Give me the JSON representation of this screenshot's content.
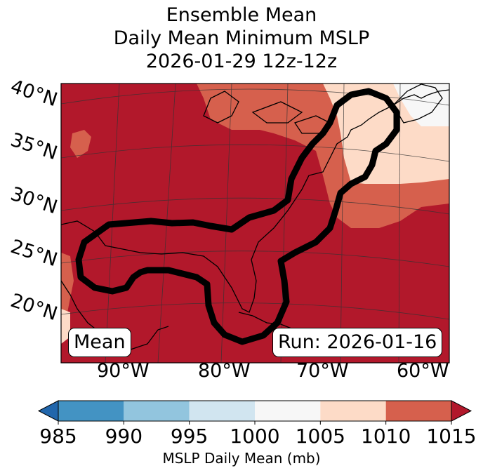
{
  "title": {
    "line1": "Ensemble Mean",
    "line2": "Daily Mean Minimum MSLP",
    "line3": "2026-01-29 12z-12z"
  },
  "map": {
    "lat_labels": [
      "40°N",
      "35°N",
      "30°N",
      "25°N",
      "20°N"
    ],
    "lon_labels": [
      "90°W",
      "80°W",
      "70°W",
      "60°W"
    ],
    "left_box": "Mean",
    "right_box": "Run: 2026-01-16",
    "contour_description_value": "1010 mb contour region",
    "colors": {
      "c985": "#2166ac",
      "c990": "#4393c3",
      "c995": "#92c5de",
      "c1000": "#d1e5f0",
      "c1005": "#f7f7f7",
      "c1010": "#fddbc7",
      "c1015": "#d6604d",
      "cover": "#b2182b"
    }
  },
  "colorbar": {
    "ticks": [
      "985",
      "990",
      "995",
      "1000",
      "1005",
      "1010",
      "1015"
    ],
    "label": "MSLP Daily Mean (mb)",
    "bins": [
      {
        "from": 985,
        "to": 990,
        "color": "#4393c3"
      },
      {
        "from": 990,
        "to": 995,
        "color": "#92c5de"
      },
      {
        "from": 995,
        "to": 1000,
        "color": "#d1e5f0"
      },
      {
        "from": 1000,
        "to": 1005,
        "color": "#f7f7f7"
      },
      {
        "from": 1005,
        "to": 1010,
        "color": "#fddbc7"
      },
      {
        "from": 1010,
        "to": 1015,
        "color": "#d6604d"
      }
    ],
    "under_color": "#2166ac",
    "over_color": "#b2182b"
  }
}
